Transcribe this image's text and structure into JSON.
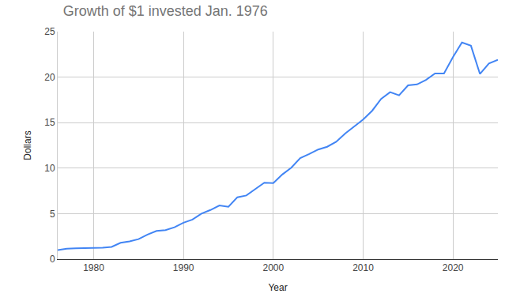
{
  "chart_data": {
    "type": "line",
    "title": "Growth of $1 invested Jan. 1976",
    "x_label": "Year",
    "y_label": "Dollars",
    "x": [
      1976,
      1977,
      1978,
      1979,
      1980,
      1981,
      1982,
      1983,
      1984,
      1985,
      1986,
      1987,
      1988,
      1989,
      1990,
      1991,
      1992,
      1993,
      1994,
      1995,
      1996,
      1997,
      1998,
      1999,
      2000,
      2001,
      2002,
      2003,
      2004,
      2005,
      2006,
      2007,
      2008,
      2009,
      2010,
      2011,
      2012,
      2013,
      2014,
      2015,
      2016,
      2017,
      2018,
      2019,
      2020,
      2021,
      2022,
      2023,
      2024,
      2025
    ],
    "values": [
      1.0,
      1.15,
      1.2,
      1.2,
      1.22,
      1.25,
      1.35,
      1.8,
      1.95,
      2.2,
      2.7,
      3.1,
      3.2,
      3.5,
      4.0,
      4.35,
      5.0,
      5.4,
      5.9,
      5.75,
      6.8,
      7.0,
      7.7,
      8.4,
      8.35,
      9.3,
      10.05,
      11.1,
      11.55,
      12.05,
      12.35,
      12.9,
      13.8,
      14.55,
      15.35,
      16.3,
      17.6,
      18.35,
      18.0,
      19.1,
      19.2,
      19.7,
      20.4,
      20.4,
      22.2,
      23.8,
      23.45,
      20.35,
      21.5,
      21.9
    ],
    "color": "#4285f4",
    "xlim": [
      1976,
      2025
    ],
    "xticks": [
      1980,
      1990,
      2000,
      2010,
      2020
    ],
    "ylim": [
      0,
      25
    ],
    "yticks": [
      0,
      5,
      10,
      15,
      20,
      25
    ],
    "grid": true
  }
}
